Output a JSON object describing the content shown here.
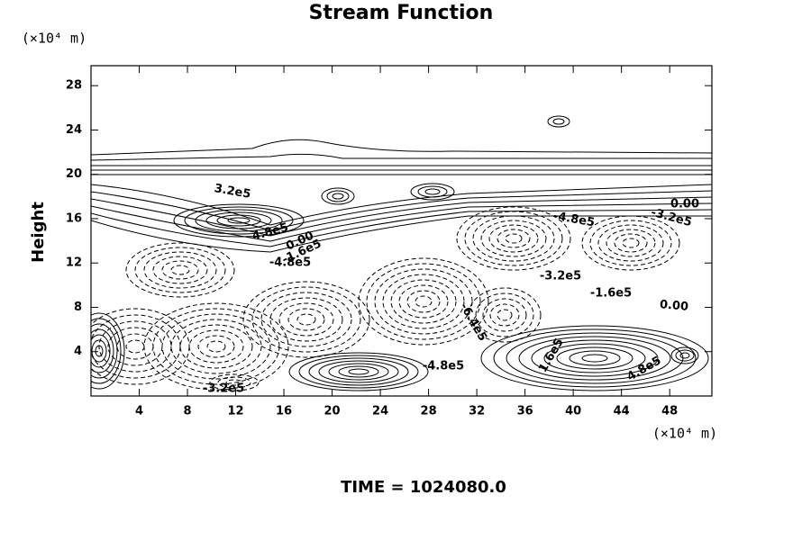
{
  "chart_data": {
    "type": "contour",
    "title": "Stream Function",
    "x_unit": "(×10⁴ m)",
    "y_unit": "(×10⁴ m)",
    "ylabel": "Height",
    "footer": "TIME = 1024080.0",
    "xlim": [
      0,
      51.5
    ],
    "ylim": [
      0,
      29.8
    ],
    "xticks": [
      4,
      8,
      12,
      16,
      20,
      24,
      28,
      32,
      36,
      40,
      44,
      48
    ],
    "yticks": [
      4,
      8,
      12,
      16,
      20,
      24,
      28
    ],
    "contour_labels": [
      "3.2e5",
      "4.8e5",
      "0.00",
      "-1.6e5",
      "-4.8e5",
      "-4.8e5",
      "-3.2e5",
      "0.00",
      "-3.2e5",
      "-1.6e5",
      "0.00",
      "-6.4e5",
      "-4.8e5",
      "4.8e5",
      "-3.2e5",
      "1.6e5"
    ]
  }
}
